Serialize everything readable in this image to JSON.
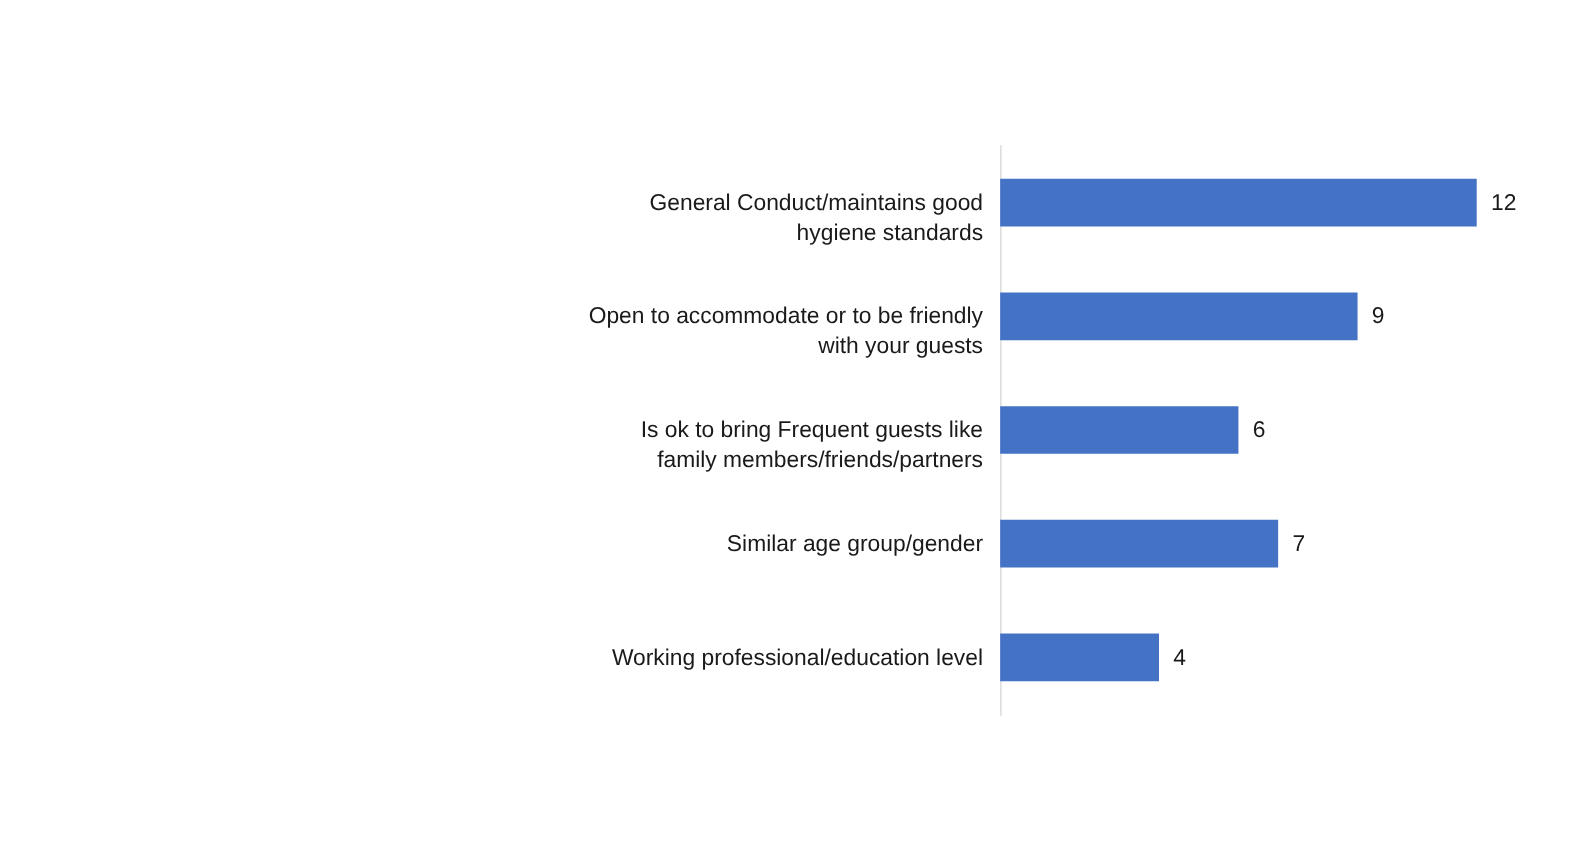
{
  "chart_data": {
    "type": "bar",
    "orientation": "horizontal",
    "data_labels": true,
    "color": "#4472c4",
    "categories": [
      "General Conduct/maintains good hygiene standards",
      "Open to accommodate or to be friendly with your guests",
      "Is ok to bring Frequent guests like family members/friends/partners",
      "Similar age group/gender",
      "Working professional/education level"
    ],
    "values": [
      12,
      9,
      6,
      7,
      4
    ]
  }
}
